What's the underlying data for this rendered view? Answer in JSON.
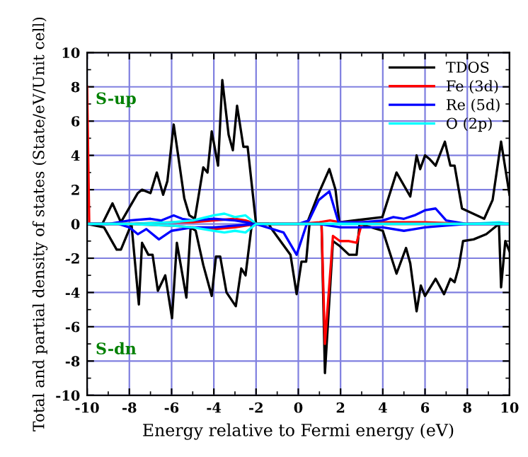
{
  "chart_data": {
    "type": "line",
    "xlabel": "Energy relative to Fermi energy (eV)",
    "ylabel": "Total and partial density of states (State/eV/Unit cell)",
    "xlim": [
      -10,
      10
    ],
    "ylim": [
      -10,
      10
    ],
    "xticks": [
      -10,
      -8,
      -6,
      -4,
      -2,
      0,
      2,
      4,
      6,
      8,
      10
    ],
    "yticks": [
      -10,
      -8,
      -6,
      -4,
      -2,
      0,
      2,
      4,
      6,
      8,
      10
    ],
    "grid": true,
    "legend": "top right",
    "marker": "none",
    "line_style": "solid",
    "annotations": [
      "S-up",
      "S-dn"
    ],
    "series": [
      {
        "name": "TDOS",
        "color": "#000000",
        "x": [
          -10,
          -9.28,
          -8.8,
          -8.4,
          -7.6,
          -7.4,
          -7.0,
          -6.7,
          -6.4,
          -6.2,
          -5.9,
          -5.4,
          -5.16,
          -4.9,
          -4.5,
          -4.3,
          -4.1,
          -3.8,
          -3.6,
          -3.3,
          -3.1,
          -2.9,
          -2.6,
          -2.4,
          -2.0,
          -1.4,
          0.4,
          0.97,
          1.47,
          1.76,
          1.94,
          3.98,
          4.65,
          5.3,
          5.6,
          5.77,
          6.0,
          6.2,
          6.5,
          6.94,
          7.2,
          7.4,
          7.75,
          8.8,
          9.2,
          9.6,
          10
        ],
        "values": [
          0,
          0,
          1.2,
          0.1,
          1.8,
          2.0,
          1.8,
          3.0,
          1.7,
          2.5,
          5.8,
          1.5,
          0.5,
          0.3,
          3.3,
          3.0,
          5.4,
          3.4,
          8.4,
          5.2,
          4.3,
          6.9,
          4.5,
          4.5,
          0,
          0,
          0,
          1.8,
          3.2,
          2.0,
          0.1,
          0.4,
          3.0,
          1.6,
          4.0,
          3.2,
          4.0,
          3.8,
          3.4,
          4.8,
          3.4,
          3.4,
          0.9,
          0.3,
          1.4,
          4.8,
          1.7
        ]
      },
      {
        "name": "Fe (3d)",
        "color": "#ff0000",
        "x": [
          -10,
          -9.95,
          -9.9,
          -8,
          -6,
          -5,
          -4,
          -3,
          -2.5,
          -2,
          0,
          1,
          1.5,
          2,
          4,
          6,
          8,
          10
        ],
        "values": [
          8,
          4,
          0,
          0,
          0.1,
          0.1,
          0.2,
          0.3,
          0.2,
          0,
          0,
          0.1,
          0.2,
          0.1,
          0.1,
          0.1,
          0,
          0
        ]
      },
      {
        "name": "Re (5d)",
        "color": "#0000ff",
        "x": [
          -10,
          -9,
          -8,
          -7,
          -6.5,
          -5.9,
          -5.5,
          -5,
          -4,
          -3,
          -2,
          -1,
          0,
          0.5,
          0.97,
          1.47,
          1.9,
          3,
          4,
          4.5,
          5,
          5.5,
          6,
          6.5,
          7,
          8,
          9,
          10
        ],
        "values": [
          0,
          0,
          0.2,
          0.3,
          0.2,
          0.5,
          0.3,
          0.2,
          0.3,
          0.2,
          0,
          0,
          0,
          0.2,
          1.4,
          1.9,
          0.1,
          0.1,
          0.2,
          0.4,
          0.3,
          0.5,
          0.8,
          0.9,
          0.2,
          0,
          0,
          0
        ]
      },
      {
        "name": "O (2p)",
        "color": "#00ffff",
        "x": [
          -10,
          -8,
          -6,
          -5,
          -4,
          -3.5,
          -3,
          -2.5,
          -2,
          0,
          2,
          4,
          6,
          8,
          9.5,
          10
        ],
        "values": [
          0,
          0,
          0.1,
          0.2,
          0.5,
          0.6,
          0.4,
          0.5,
          0,
          0,
          0,
          0,
          0,
          0,
          0.1,
          0
        ]
      },
      {
        "color": "#000000",
        "x": [
          -10,
          -9.2,
          -8.6,
          -8.4,
          -7.9,
          -7.55,
          -7.4,
          -7.1,
          -6.9,
          -6.65,
          -6.3,
          -5.98,
          -5.75,
          -5.3,
          -5.1,
          -4.86,
          -4.5,
          -4.1,
          -3.9,
          -3.7,
          -3.4,
          -2.96,
          -2.7,
          -2.5,
          -2.2,
          -1.4,
          -1.26,
          -0.37,
          -0.08,
          0.15,
          0.37,
          0.53,
          1.1,
          1.26,
          1.64,
          1.97,
          2.4,
          2.76,
          2.9,
          4.0,
          4.65,
          5.1,
          5.3,
          5.6,
          5.8,
          6.0,
          6.5,
          6.9,
          7.2,
          7.4,
          7.6,
          7.8,
          8.3,
          8.9,
          9.5,
          9.6,
          9.8,
          10
        ],
        "values": [
          0,
          -0.2,
          -1.5,
          -1.5,
          0,
          -4.7,
          -1.1,
          -1.8,
          -1.8,
          -3.9,
          -3.0,
          -5.5,
          -1.1,
          -4.3,
          -0.2,
          -0.4,
          -2.4,
          -4.2,
          -1.9,
          -1.9,
          -4.0,
          -4.8,
          -2.6,
          -3.0,
          0,
          0,
          -0.3,
          -1.8,
          -4.1,
          -2.2,
          -2.2,
          0,
          0,
          -8.7,
          -1.0,
          -1.3,
          -1.8,
          -1.8,
          0,
          -0.4,
          -2.9,
          -1.4,
          -2.3,
          -5.1,
          -3.6,
          -4.2,
          -3.2,
          -4.1,
          -3.2,
          -3.4,
          -2.5,
          -1.0,
          -0.9,
          -0.6,
          0,
          -3.7,
          -1.0,
          -1.6
        ]
      },
      {
        "color": "#ff0000",
        "x": [
          -10,
          -8,
          -6,
          -5,
          -4,
          -3,
          -2,
          0,
          1.1,
          1.26,
          1.64,
          1.97,
          2.4,
          2.76,
          3.0,
          6,
          10
        ],
        "values": [
          0,
          0,
          -0.1,
          -0.2,
          -0.3,
          -0.2,
          0,
          0,
          0,
          -7.0,
          -0.7,
          -1.0,
          -1.0,
          -1.1,
          0,
          0,
          0
        ]
      },
      {
        "color": "#0000ff",
        "x": [
          -10,
          -8.5,
          -8,
          -7.6,
          -7.2,
          -6.6,
          -6,
          -5,
          -4,
          -3,
          -2,
          -0.7,
          -0.08,
          0.4,
          1,
          2,
          4,
          5,
          5.5,
          6,
          7,
          8,
          10
        ],
        "values": [
          0,
          0,
          -0.2,
          -0.6,
          -0.3,
          -0.9,
          -0.4,
          -0.2,
          -0.2,
          -0.1,
          0,
          -0.5,
          -1.8,
          0,
          0,
          -0.2,
          -0.2,
          -0.4,
          -0.3,
          -0.2,
          -0.1,
          0,
          0
        ]
      },
      {
        "color": "#00ffff",
        "x": [
          -10,
          -8,
          -6,
          -5,
          -4,
          -3.5,
          -3,
          -2.5,
          -2,
          0,
          10
        ],
        "values": [
          0,
          0,
          -0.1,
          -0.2,
          -0.4,
          -0.5,
          -0.4,
          -0.5,
          0,
          0,
          0
        ]
      }
    ]
  }
}
